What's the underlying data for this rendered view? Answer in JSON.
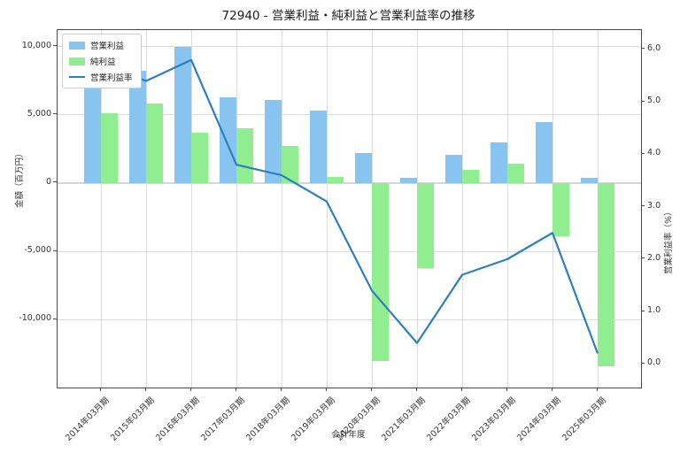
{
  "title": "72940 - 営業利益・純利益と営業利益率の推移",
  "chart_data": {
    "type": "combo",
    "categories": [
      "2014年03月期",
      "2015年03月期",
      "2016年03月期",
      "2017年03月期",
      "2018年03月期",
      "2019年03月期",
      "2020年03月期",
      "2021年03月期",
      "2022年03月期",
      "2023年03月期",
      "2024年03月期",
      "2025年03月期"
    ],
    "series": [
      {
        "name": "営業利益",
        "type": "bar",
        "axis": "left",
        "color": "#88C4F0",
        "values": [
          7950,
          8200,
          10000,
          6300,
          6100,
          5300,
          2200,
          400,
          2100,
          3000,
          4500,
          400
        ]
      },
      {
        "name": "純利益",
        "type": "bar",
        "axis": "left",
        "color": "#90EE90",
        "values": [
          5100,
          5800,
          3700,
          4000,
          2700,
          450,
          -13000,
          -6200,
          950,
          1400,
          -3900,
          -13400
        ]
      },
      {
        "name": "営業利益率",
        "type": "line",
        "axis": "right",
        "color": "#2E7EBC",
        "values": [
          5.7,
          5.4,
          5.8,
          3.8,
          3.6,
          3.1,
          1.4,
          0.4,
          1.7,
          2.0,
          2.5,
          0.2
        ]
      }
    ],
    "xlabel": "会計年度",
    "ylabel_left": "金額（百万円）",
    "ylabel_right": "営業利益率（%）",
    "left_axis": {
      "ticks": [
        10000,
        5000,
        0,
        -5000,
        -10000
      ],
      "min": -14970,
      "max": 11210
    },
    "right_axis": {
      "ticks": [
        6.0,
        5.0,
        4.0,
        3.0,
        2.0,
        1.0,
        0.0
      ],
      "min": -0.45,
      "max": 6.37
    },
    "grid": true,
    "legend_position": "upper-left"
  }
}
